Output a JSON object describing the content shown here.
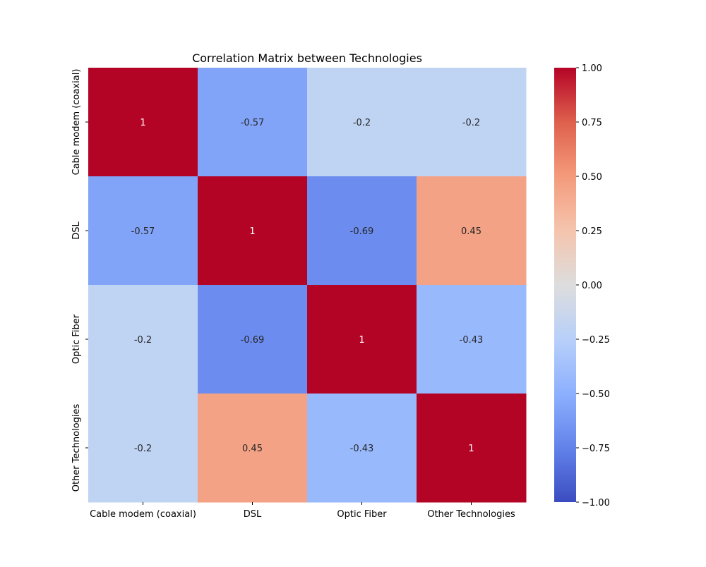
{
  "chart_data": {
    "type": "heatmap",
    "title": "Correlation Matrix between Technologies",
    "x_categories": [
      "Cable modem (coaxial)",
      "DSL",
      "Optic Fiber",
      "Other Technologies"
    ],
    "y_categories": [
      "Cable modem (coaxial)",
      "DSL",
      "Optic Fiber",
      "Other Technologies"
    ],
    "values": [
      [
        1,
        -0.57,
        -0.2,
        -0.2
      ],
      [
        -0.57,
        1,
        -0.69,
        0.45
      ],
      [
        -0.2,
        -0.69,
        1,
        -0.43
      ],
      [
        -0.2,
        0.45,
        -0.43,
        1
      ]
    ],
    "annotations": [
      [
        "1",
        "-0.57",
        "-0.2",
        "-0.2"
      ],
      [
        "-0.57",
        "1",
        "-0.69",
        "0.45"
      ],
      [
        "-0.2",
        "-0.69",
        "1",
        "-0.43"
      ],
      [
        "-0.2",
        "0.45",
        "-0.43",
        "1"
      ]
    ],
    "colormap": "coolwarm",
    "vmin": -1,
    "vmax": 1,
    "colorbar_ticks": [
      "1.00",
      "0.75",
      "0.50",
      "0.25",
      "0.00",
      "−0.25",
      "−0.50",
      "−0.75",
      "−1.00"
    ],
    "colorbar_tick_values": [
      1,
      0.75,
      0.5,
      0.25,
      0,
      -0.25,
      -0.5,
      -0.75,
      -1
    ]
  }
}
